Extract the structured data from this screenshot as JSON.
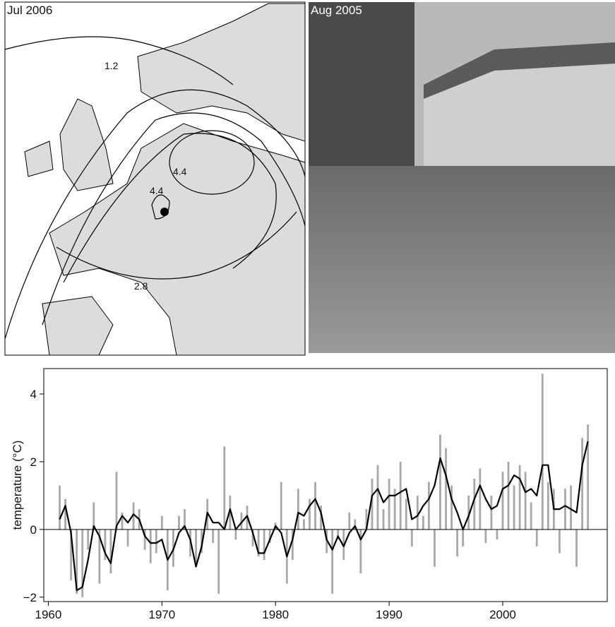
{
  "panels": {
    "map": {
      "title": "Jul 2006",
      "contour_labels": [
        "1.2",
        "4.4",
        "4.4",
        "2.8"
      ]
    },
    "photo": {
      "title": "Aug 2005"
    }
  },
  "chart_data": {
    "type": "bar",
    "y_label": "temperature (°C)",
    "x": [
      1961.0,
      1961.5,
      1962.0,
      1962.5,
      1963.0,
      1963.5,
      1964.0,
      1964.5,
      1965.0,
      1965.5,
      1966.0,
      1966.5,
      1967.0,
      1967.5,
      1968.0,
      1968.5,
      1969.0,
      1969.5,
      1970.0,
      1970.5,
      1971.0,
      1971.5,
      1972.0,
      1972.5,
      1973.0,
      1973.5,
      1974.0,
      1974.5,
      1975.0,
      1975.5,
      1976.0,
      1976.5,
      1977.0,
      1977.5,
      1978.0,
      1978.5,
      1979.0,
      1979.5,
      1980.0,
      1980.5,
      1981.0,
      1981.5,
      1982.0,
      1982.5,
      1983.0,
      1983.5,
      1984.0,
      1984.5,
      1985.0,
      1985.5,
      1986.0,
      1986.5,
      1987.0,
      1987.5,
      1988.0,
      1988.5,
      1989.0,
      1989.5,
      1990.0,
      1990.5,
      1991.0,
      1991.5,
      1992.0,
      1992.5,
      1993.0,
      1993.5,
      1994.0,
      1994.5,
      1995.0,
      1995.5,
      1996.0,
      1996.5,
      1997.0,
      1997.5,
      1998.0,
      1998.5,
      1999.0,
      1999.5,
      2000.0,
      2000.5,
      2001.0,
      2001.5,
      2002.0,
      2002.5,
      2003.0,
      2003.5,
      2004.0,
      2004.5,
      2005.0,
      2005.5,
      2006.0,
      2006.5,
      2007.0,
      2007.5
    ],
    "series": [
      {
        "type": "bar",
        "color": "#a8a8a8",
        "values": [
          1.3,
          0.9,
          -1.5,
          -1.9,
          -2.0,
          -0.6,
          0.8,
          -1.6,
          -0.9,
          -1.3,
          1.7,
          0.5,
          -0.5,
          0.8,
          0.6,
          -0.6,
          -1.0,
          -0.7,
          0.4,
          -1.8,
          -1.1,
          0.4,
          0.6,
          -0.8,
          -1.0,
          -0.7,
          0.9,
          -0.4,
          -1.9,
          2.45,
          1.0,
          -0.3,
          0.5,
          0.7,
          -0.5,
          -0.8,
          -0.9,
          -0.4,
          0.2,
          1.4,
          -1.6,
          -0.9,
          1.2,
          0.3,
          0.9,
          1.4,
          0.7,
          -0.7,
          -1.9,
          -0.3,
          -0.9,
          0.5,
          0.3,
          -1.3,
          0.6,
          1.5,
          1.9,
          0.6,
          1.5,
          1.2,
          2.0,
          0.9,
          -0.5,
          1.0,
          0.4,
          1.4,
          -1.1,
          2.8,
          2.4,
          1.3,
          -0.8,
          -0.5,
          1.0,
          1.5,
          1.8,
          -0.4,
          1.0,
          -0.3,
          1.7,
          2.0,
          1.3,
          1.9,
          1.7,
          0.8,
          -0.5,
          4.6,
          1.4,
          1.2,
          -0.7,
          1.2,
          1.3,
          -1.1,
          2.7,
          3.1
        ]
      },
      {
        "type": "line",
        "color": "#000000",
        "values": [
          0.3,
          0.7,
          -0.1,
          -1.8,
          -1.7,
          -0.9,
          0.1,
          -0.2,
          -0.7,
          -1.0,
          0.1,
          0.4,
          0.2,
          0.45,
          0.3,
          -0.2,
          -0.4,
          -0.4,
          -0.3,
          -0.9,
          -0.6,
          -0.1,
          0.1,
          -0.3,
          -1.1,
          -0.5,
          0.5,
          0.2,
          0.2,
          0.0,
          0.6,
          0.0,
          0.2,
          0.4,
          -0.1,
          -0.7,
          -0.7,
          -0.3,
          0.1,
          -0.1,
          -0.8,
          -0.3,
          0.5,
          0.4,
          0.7,
          0.9,
          0.5,
          -0.3,
          -0.6,
          -0.2,
          -0.5,
          -0.1,
          0.1,
          -0.3,
          0.0,
          1.0,
          1.2,
          0.8,
          1.0,
          1.0,
          1.1,
          1.2,
          0.3,
          0.4,
          0.7,
          0.9,
          1.3,
          2.1,
          1.6,
          0.9,
          0.5,
          0.0,
          0.4,
          0.9,
          1.3,
          0.9,
          0.6,
          0.7,
          1.2,
          1.3,
          1.6,
          1.5,
          1.1,
          1.2,
          1.0,
          1.9,
          1.9,
          0.6,
          0.6,
          0.7,
          0.6,
          0.5,
          1.9,
          2.6
        ]
      }
    ],
    "xlim": [
      1959.6,
      2009.2
    ],
    "xticks": [
      1960,
      1970,
      1980,
      1990,
      2000
    ],
    "ylim": [
      -2.13,
      4.75
    ],
    "yticks": [
      {
        "value": -2,
        "label": "−2"
      },
      0,
      2,
      4
    ]
  }
}
